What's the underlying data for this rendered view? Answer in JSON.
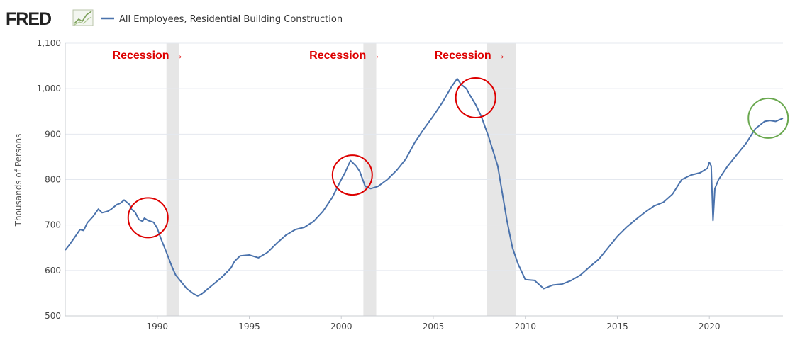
{
  "brand": {
    "name": "FRED"
  },
  "colors": {
    "series": "#4a72ac",
    "recession_band": "#e6e6e6",
    "annotation_red": "#dd0000",
    "annotation_green": "#6aa84f",
    "grid": "#e4e8ef",
    "plot_border": "#c9ccd1"
  },
  "chart_data": {
    "type": "line",
    "ylabel": "Thousands of Persons",
    "ylim": [
      500,
      1100
    ],
    "xlim": [
      1985.0,
      2024.0
    ],
    "yticks": [
      500,
      600,
      700,
      800,
      900,
      1000,
      1100
    ],
    "ytick_labels": [
      "500",
      "600",
      "700",
      "800",
      "900",
      "1,000",
      "1,100"
    ],
    "xticks": [
      1990,
      1995,
      2000,
      2005,
      2010,
      2015,
      2020
    ],
    "xtick_labels": [
      "1990",
      "1995",
      "2000",
      "2005",
      "2010",
      "2015",
      "2020"
    ],
    "grid": true,
    "series": [
      {
        "name": "All Employees, Residential Building Construction",
        "x": [
          1985.0,
          1985.2,
          1985.5,
          1985.8,
          1986.0,
          1986.2,
          1986.5,
          1986.8,
          1987.0,
          1987.3,
          1987.5,
          1987.8,
          1988.0,
          1988.2,
          1988.5,
          1988.6,
          1988.8,
          1989.0,
          1989.2,
          1989.3,
          1989.5,
          1989.8,
          1990.0,
          1990.2,
          1990.5,
          1990.8,
          1991.0,
          1991.3,
          1991.6,
          1992.0,
          1992.2,
          1992.4,
          1992.7,
          1993.0,
          1993.5,
          1994.0,
          1994.2,
          1994.5,
          1995.0,
          1995.5,
          1996.0,
          1996.5,
          1997.0,
          1997.5,
          1998.0,
          1998.5,
          1999.0,
          1999.5,
          2000.0,
          2000.2,
          2000.5,
          2000.8,
          2001.0,
          2001.3,
          2001.6,
          2002.0,
          2002.5,
          2003.0,
          2003.5,
          2004.0,
          2004.5,
          2005.0,
          2005.5,
          2006.0,
          2006.3,
          2006.5,
          2006.8,
          2007.0,
          2007.3,
          2007.6,
          2008.0,
          2008.5,
          2009.0,
          2009.3,
          2009.6,
          2010.0,
          2010.5,
          2011.0,
          2011.5,
          2012.0,
          2012.5,
          2013.0,
          2013.5,
          2014.0,
          2014.5,
          2015.0,
          2015.5,
          2016.0,
          2016.5,
          2017.0,
          2017.5,
          2018.0,
          2018.5,
          2019.0,
          2019.5,
          2019.9,
          2020.0,
          2020.1,
          2020.2,
          2020.3,
          2020.5,
          2021.0,
          2021.5,
          2022.0,
          2022.5,
          2023.0,
          2023.3,
          2023.6,
          2024.0
        ],
        "values": [
          645,
          655,
          672,
          690,
          688,
          705,
          718,
          735,
          727,
          730,
          735,
          745,
          748,
          755,
          745,
          735,
          728,
          712,
          708,
          715,
          710,
          706,
          693,
          670,
          640,
          608,
          590,
          575,
          560,
          548,
          544,
          548,
          558,
          568,
          585,
          605,
          620,
          632,
          634,
          628,
          640,
          660,
          678,
          690,
          695,
          708,
          730,
          760,
          800,
          815,
          842,
          830,
          818,
          785,
          780,
          785,
          800,
          820,
          845,
          882,
          912,
          940,
          970,
          1005,
          1022,
          1010,
          1000,
          985,
          965,
          940,
          895,
          830,
          710,
          650,
          615,
          580,
          578,
          560,
          568,
          570,
          578,
          590,
          608,
          625,
          650,
          675,
          695,
          712,
          728,
          742,
          750,
          768,
          800,
          810,
          815,
          825,
          838,
          830,
          710,
          780,
          800,
          830,
          855,
          880,
          912,
          928,
          930,
          928,
          935
        ]
      }
    ],
    "recessions": [
      [
        1990.5,
        1991.2
      ],
      [
        2001.2,
        2001.9
      ],
      [
        2007.9,
        2009.5
      ]
    ],
    "annotations": [
      {
        "text": "Recession",
        "arrow": "→",
        "x": 1989.5,
        "y": 1075
      },
      {
        "text": "Recession",
        "arrow": "→",
        "x": 2000.2,
        "y": 1075
      },
      {
        "text": "Recession",
        "arrow": "→",
        "x": 2007.0,
        "y": 1075
      }
    ],
    "highlight_circles": [
      {
        "x": 1989.5,
        "y": 716,
        "color": "red"
      },
      {
        "x": 2000.6,
        "y": 810,
        "color": "red"
      },
      {
        "x": 2007.3,
        "y": 980,
        "color": "red"
      },
      {
        "x": 2023.2,
        "y": 935,
        "color": "green"
      }
    ]
  }
}
